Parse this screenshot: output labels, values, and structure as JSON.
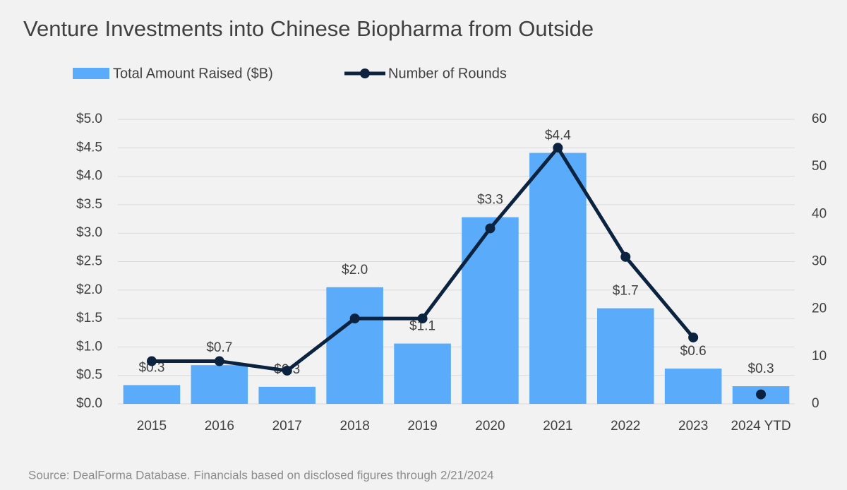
{
  "chart_data": {
    "type": "bar-line",
    "title": "Venture Investments into Chinese Biopharma from Outside",
    "source": "Source: DealForma Database. Financials based on disclosed figures through 2/21/2024",
    "categories": [
      "2015",
      "2016",
      "2017",
      "2018",
      "2019",
      "2020",
      "2021",
      "2022",
      "2023",
      "2024 YTD"
    ],
    "series": [
      {
        "name": "Total Amount Raised ($B)",
        "type": "bar",
        "color": "#5aabf9",
        "values": [
          0.33,
          0.68,
          0.3,
          2.05,
          1.06,
          3.28,
          4.41,
          1.68,
          0.62,
          0.31
        ],
        "value_labels": [
          "$0.3",
          "$0.7",
          "$0.3",
          "$2.0",
          "$1.1",
          "$3.3",
          "$4.4",
          "$1.7",
          "$0.6",
          "$0.3"
        ]
      },
      {
        "name": "Number of Rounds",
        "type": "line",
        "axis": "y2",
        "color": "#0c2340",
        "values": [
          9,
          9,
          7,
          18,
          18,
          37,
          54,
          31,
          14,
          2
        ]
      }
    ],
    "ylim": [
      0,
      5
    ],
    "yticks": [
      {
        "value": 0,
        "label": "$0.0"
      },
      {
        "value": 0.5,
        "label": "$0.5"
      },
      {
        "value": 1,
        "label": "$1.0"
      },
      {
        "value": 1.5,
        "label": "$1.5"
      },
      {
        "value": 2,
        "label": "$2.0"
      },
      {
        "value": 2.5,
        "label": "$2.5"
      },
      {
        "value": 3,
        "label": "$3.0"
      },
      {
        "value": 3.5,
        "label": "$3.5"
      },
      {
        "value": 4,
        "label": "$4.0"
      },
      {
        "value": 4.5,
        "label": "$4.5"
      },
      {
        "value": 5,
        "label": "$5.0"
      }
    ],
    "y2lim": [
      0,
      60
    ],
    "y2ticks": [
      0,
      10,
      20,
      30,
      40,
      50,
      60
    ],
    "grid": true
  }
}
